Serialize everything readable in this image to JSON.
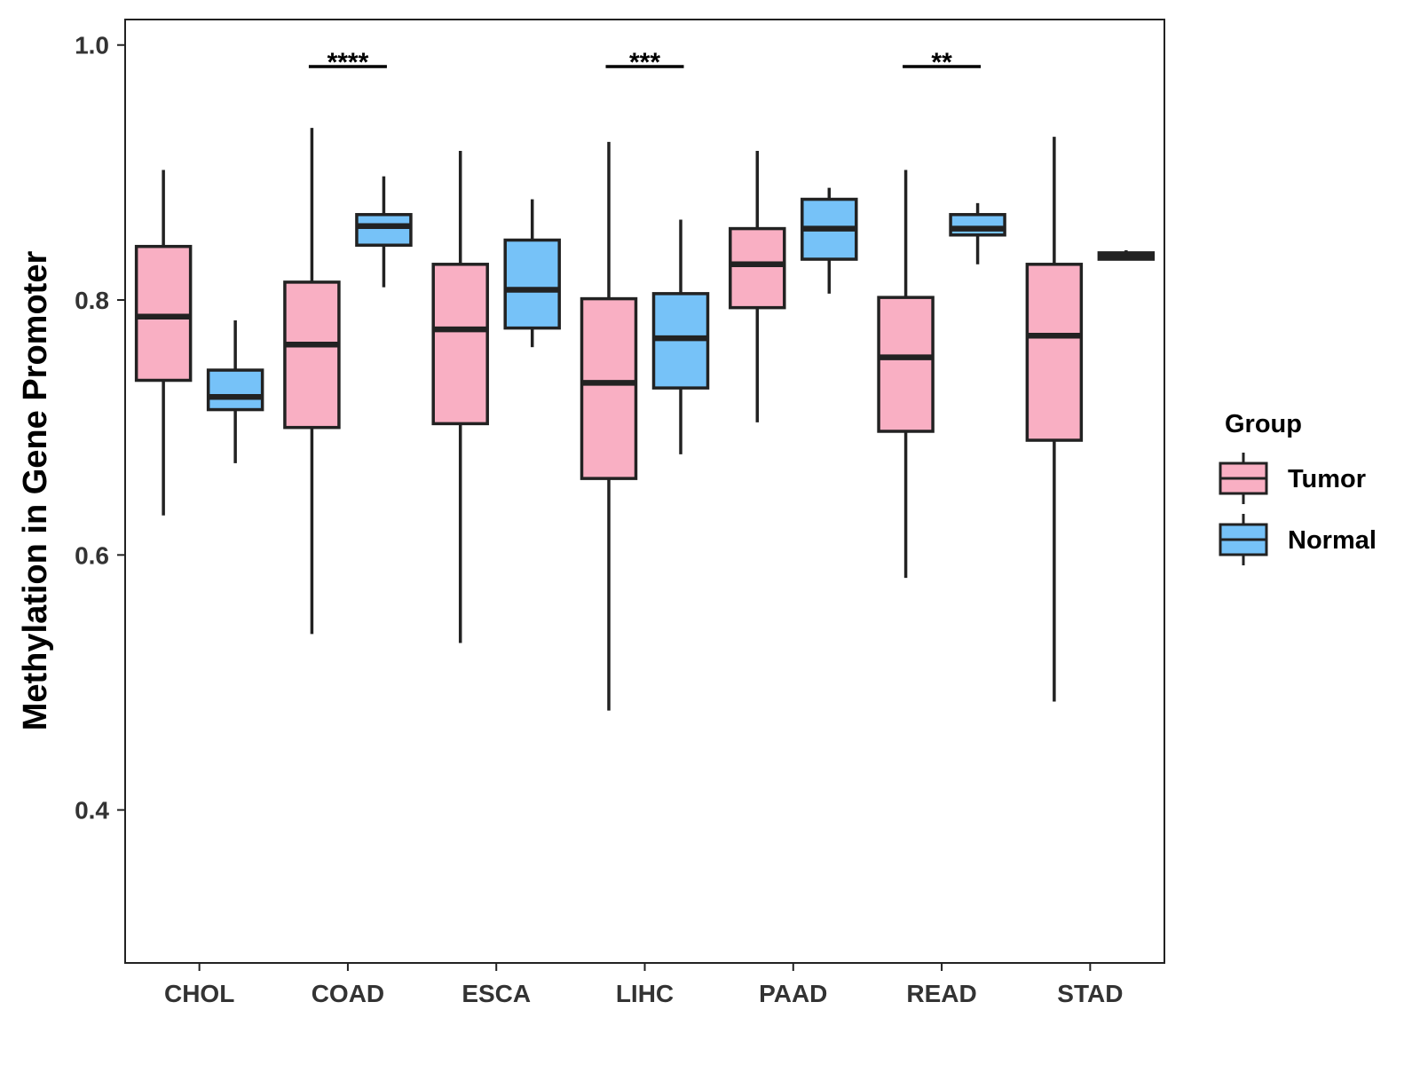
{
  "colors": {
    "tumor": "#F9AFC3",
    "normal": "#76C2F8",
    "stroke": "#222222",
    "axis": "#222222"
  },
  "chart_data": {
    "type": "boxplot",
    "title": "",
    "xlabel": "",
    "ylabel": "Methylation in Gene Promoter",
    "ylim": [
      0.28,
      1.02
    ],
    "yticks": [
      0.4,
      0.6,
      0.8,
      1.0
    ],
    "ytick_labels": [
      "0.4",
      "0.6",
      "0.8",
      "1.0"
    ],
    "categories": [
      "CHOL",
      "COAD",
      "ESCA",
      "LIHC",
      "PAAD",
      "READ",
      "STAD"
    ],
    "legend": {
      "title": "Group",
      "position": "right",
      "entries": [
        "Tumor",
        "Normal"
      ]
    },
    "series": [
      {
        "name": "Tumor",
        "boxes": [
          {
            "min": 0.631,
            "q1": 0.737,
            "median": 0.787,
            "q3": 0.842,
            "max": 0.902
          },
          {
            "min": 0.538,
            "q1": 0.7,
            "median": 0.765,
            "q3": 0.814,
            "max": 0.935
          },
          {
            "min": 0.531,
            "q1": 0.703,
            "median": 0.777,
            "q3": 0.828,
            "max": 0.917
          },
          {
            "min": 0.478,
            "q1": 0.66,
            "median": 0.735,
            "q3": 0.801,
            "max": 0.924
          },
          {
            "min": 0.704,
            "q1": 0.794,
            "median": 0.828,
            "q3": 0.856,
            "max": 0.917
          },
          {
            "min": 0.582,
            "q1": 0.697,
            "median": 0.755,
            "q3": 0.802,
            "max": 0.902
          },
          {
            "min": 0.485,
            "q1": 0.69,
            "median": 0.772,
            "q3": 0.828,
            "max": 0.928
          }
        ]
      },
      {
        "name": "Normal",
        "boxes": [
          {
            "min": 0.672,
            "q1": 0.714,
            "median": 0.724,
            "q3": 0.745,
            "max": 0.784
          },
          {
            "min": 0.81,
            "q1": 0.843,
            "median": 0.858,
            "q3": 0.867,
            "max": 0.897
          },
          {
            "min": 0.763,
            "q1": 0.778,
            "median": 0.808,
            "q3": 0.847,
            "max": 0.879
          },
          {
            "min": 0.679,
            "q1": 0.731,
            "median": 0.77,
            "q3": 0.805,
            "max": 0.863
          },
          {
            "min": 0.805,
            "q1": 0.832,
            "median": 0.856,
            "q3": 0.879,
            "max": 0.888
          },
          {
            "min": 0.828,
            "q1": 0.851,
            "median": 0.856,
            "q3": 0.867,
            "max": 0.876
          },
          {
            "min": 0.831,
            "q1": 0.832,
            "median": 0.835,
            "q3": 0.837,
            "max": 0.839
          }
        ]
      }
    ],
    "significance": [
      {
        "category": "COAD",
        "label": "****"
      },
      {
        "category": "LIHC",
        "label": "***"
      },
      {
        "category": "READ",
        "label": "**"
      }
    ]
  }
}
